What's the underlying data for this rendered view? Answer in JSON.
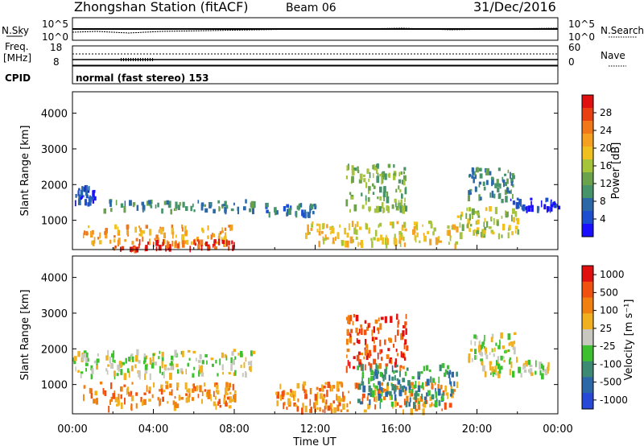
{
  "header": {
    "station": "Zhongshan Station (fitACF)",
    "beam": "Beam 06",
    "date": "31/Dec/2016"
  },
  "summary": {
    "nsky_label": "N.Sky",
    "nsky_ticks": [
      "10^5",
      "10^0"
    ],
    "nsearch_label": "N.Search",
    "nsearch_ticks": [
      "10^5",
      "10^0"
    ],
    "freq_label": "Freq.",
    "freq_unit": "[MHz]",
    "freq_ticks": [
      "18",
      "8"
    ],
    "nave_label": "Nave",
    "nave_ticks": [
      "60",
      "0"
    ],
    "cpid_label": "CPID",
    "cpid_value": "normal (fast stereo) 153"
  },
  "chart_data": [
    {
      "type": "heatmap",
      "name": "power",
      "ylabel": "Slant Range [km]",
      "xlabel": "",
      "ylim": [
        180,
        4600
      ],
      "yticks": [
        "1000",
        "2000",
        "3000",
        "4000"
      ],
      "colorbar": {
        "label": "Power [dB]",
        "ticks": [
          "4",
          "8",
          "12",
          "16",
          "20",
          "24",
          "28"
        ],
        "colors": [
          "#1a10ff",
          "#1c4fd0",
          "#2c68a8",
          "#48946a",
          "#6aa34c",
          "#a6c43a",
          "#f0c020",
          "#f5a020",
          "#f07818",
          "#e84010",
          "#e01010"
        ]
      },
      "bands": [
        {
          "t": [
            0,
            1.2
          ],
          "r": [
            1500,
            2000
          ],
          "level": 1
        },
        {
          "t": [
            1.5,
            9
          ],
          "r": [
            1300,
            1600
          ],
          "level": 3
        },
        {
          "t": [
            9.5,
            12
          ],
          "r": [
            1200,
            1500
          ],
          "level": 2
        },
        {
          "t": [
            0.5,
            8
          ],
          "r": [
            400,
            900
          ],
          "level": 7
        },
        {
          "t": [
            2,
            8
          ],
          "r": [
            250,
            500
          ],
          "level": 9
        },
        {
          "t": [
            11.5,
            19
          ],
          "r": [
            350,
            1000
          ],
          "level": 6
        },
        {
          "t": [
            13.5,
            16.5
          ],
          "r": [
            1300,
            2600
          ],
          "level": 4
        },
        {
          "t": [
            19.5,
            21.8
          ],
          "r": [
            1600,
            2500
          ],
          "level": 3
        },
        {
          "t": [
            21.5,
            24
          ],
          "r": [
            1350,
            1650
          ],
          "level": 1
        },
        {
          "t": [
            19,
            22
          ],
          "r": [
            600,
            1400
          ],
          "level": 5
        }
      ]
    },
    {
      "type": "heatmap",
      "name": "velocity",
      "ylabel": "Slant Range [km]",
      "xlabel": "Time UT",
      "ylim": [
        180,
        4600
      ],
      "yticks": [
        "1000",
        "2000",
        "3000",
        "4000"
      ],
      "xlim": [
        0,
        24
      ],
      "xticks": [
        "00:00",
        "04:00",
        "08:00",
        "12:00",
        "16:00",
        "20:00",
        "00:00"
      ],
      "colorbar": {
        "label": "Velocity [m s⁻¹]",
        "ticks": [
          "1000",
          "500",
          "100",
          "25",
          "-25",
          "-100",
          "-500",
          "-1000"
        ],
        "colors": [
          "#2848d8",
          "#2c68a8",
          "#3c8a74",
          "#3cc030",
          "#c8c8c0",
          "#f0b020",
          "#f08010",
          "#f05010",
          "#e01010"
        ]
      },
      "bands": [
        {
          "t": [
            0,
            9
          ],
          "r": [
            1300,
            2000
          ],
          "level": 4
        },
        {
          "t": [
            0.5,
            8
          ],
          "r": [
            400,
            1100
          ],
          "level": 6
        },
        {
          "t": [
            10,
            19
          ],
          "r": [
            300,
            1100
          ],
          "level": 6
        },
        {
          "t": [
            13.5,
            16.5
          ],
          "r": [
            1500,
            3000
          ],
          "level": 7
        },
        {
          "t": [
            19.5,
            22
          ],
          "r": [
            1700,
            2500
          ],
          "level": 4
        },
        {
          "t": [
            14,
            19
          ],
          "r": [
            500,
            1600
          ],
          "level": 2
        },
        {
          "t": [
            20,
            23.5
          ],
          "r": [
            1300,
            1700
          ],
          "level": 4
        }
      ]
    }
  ]
}
